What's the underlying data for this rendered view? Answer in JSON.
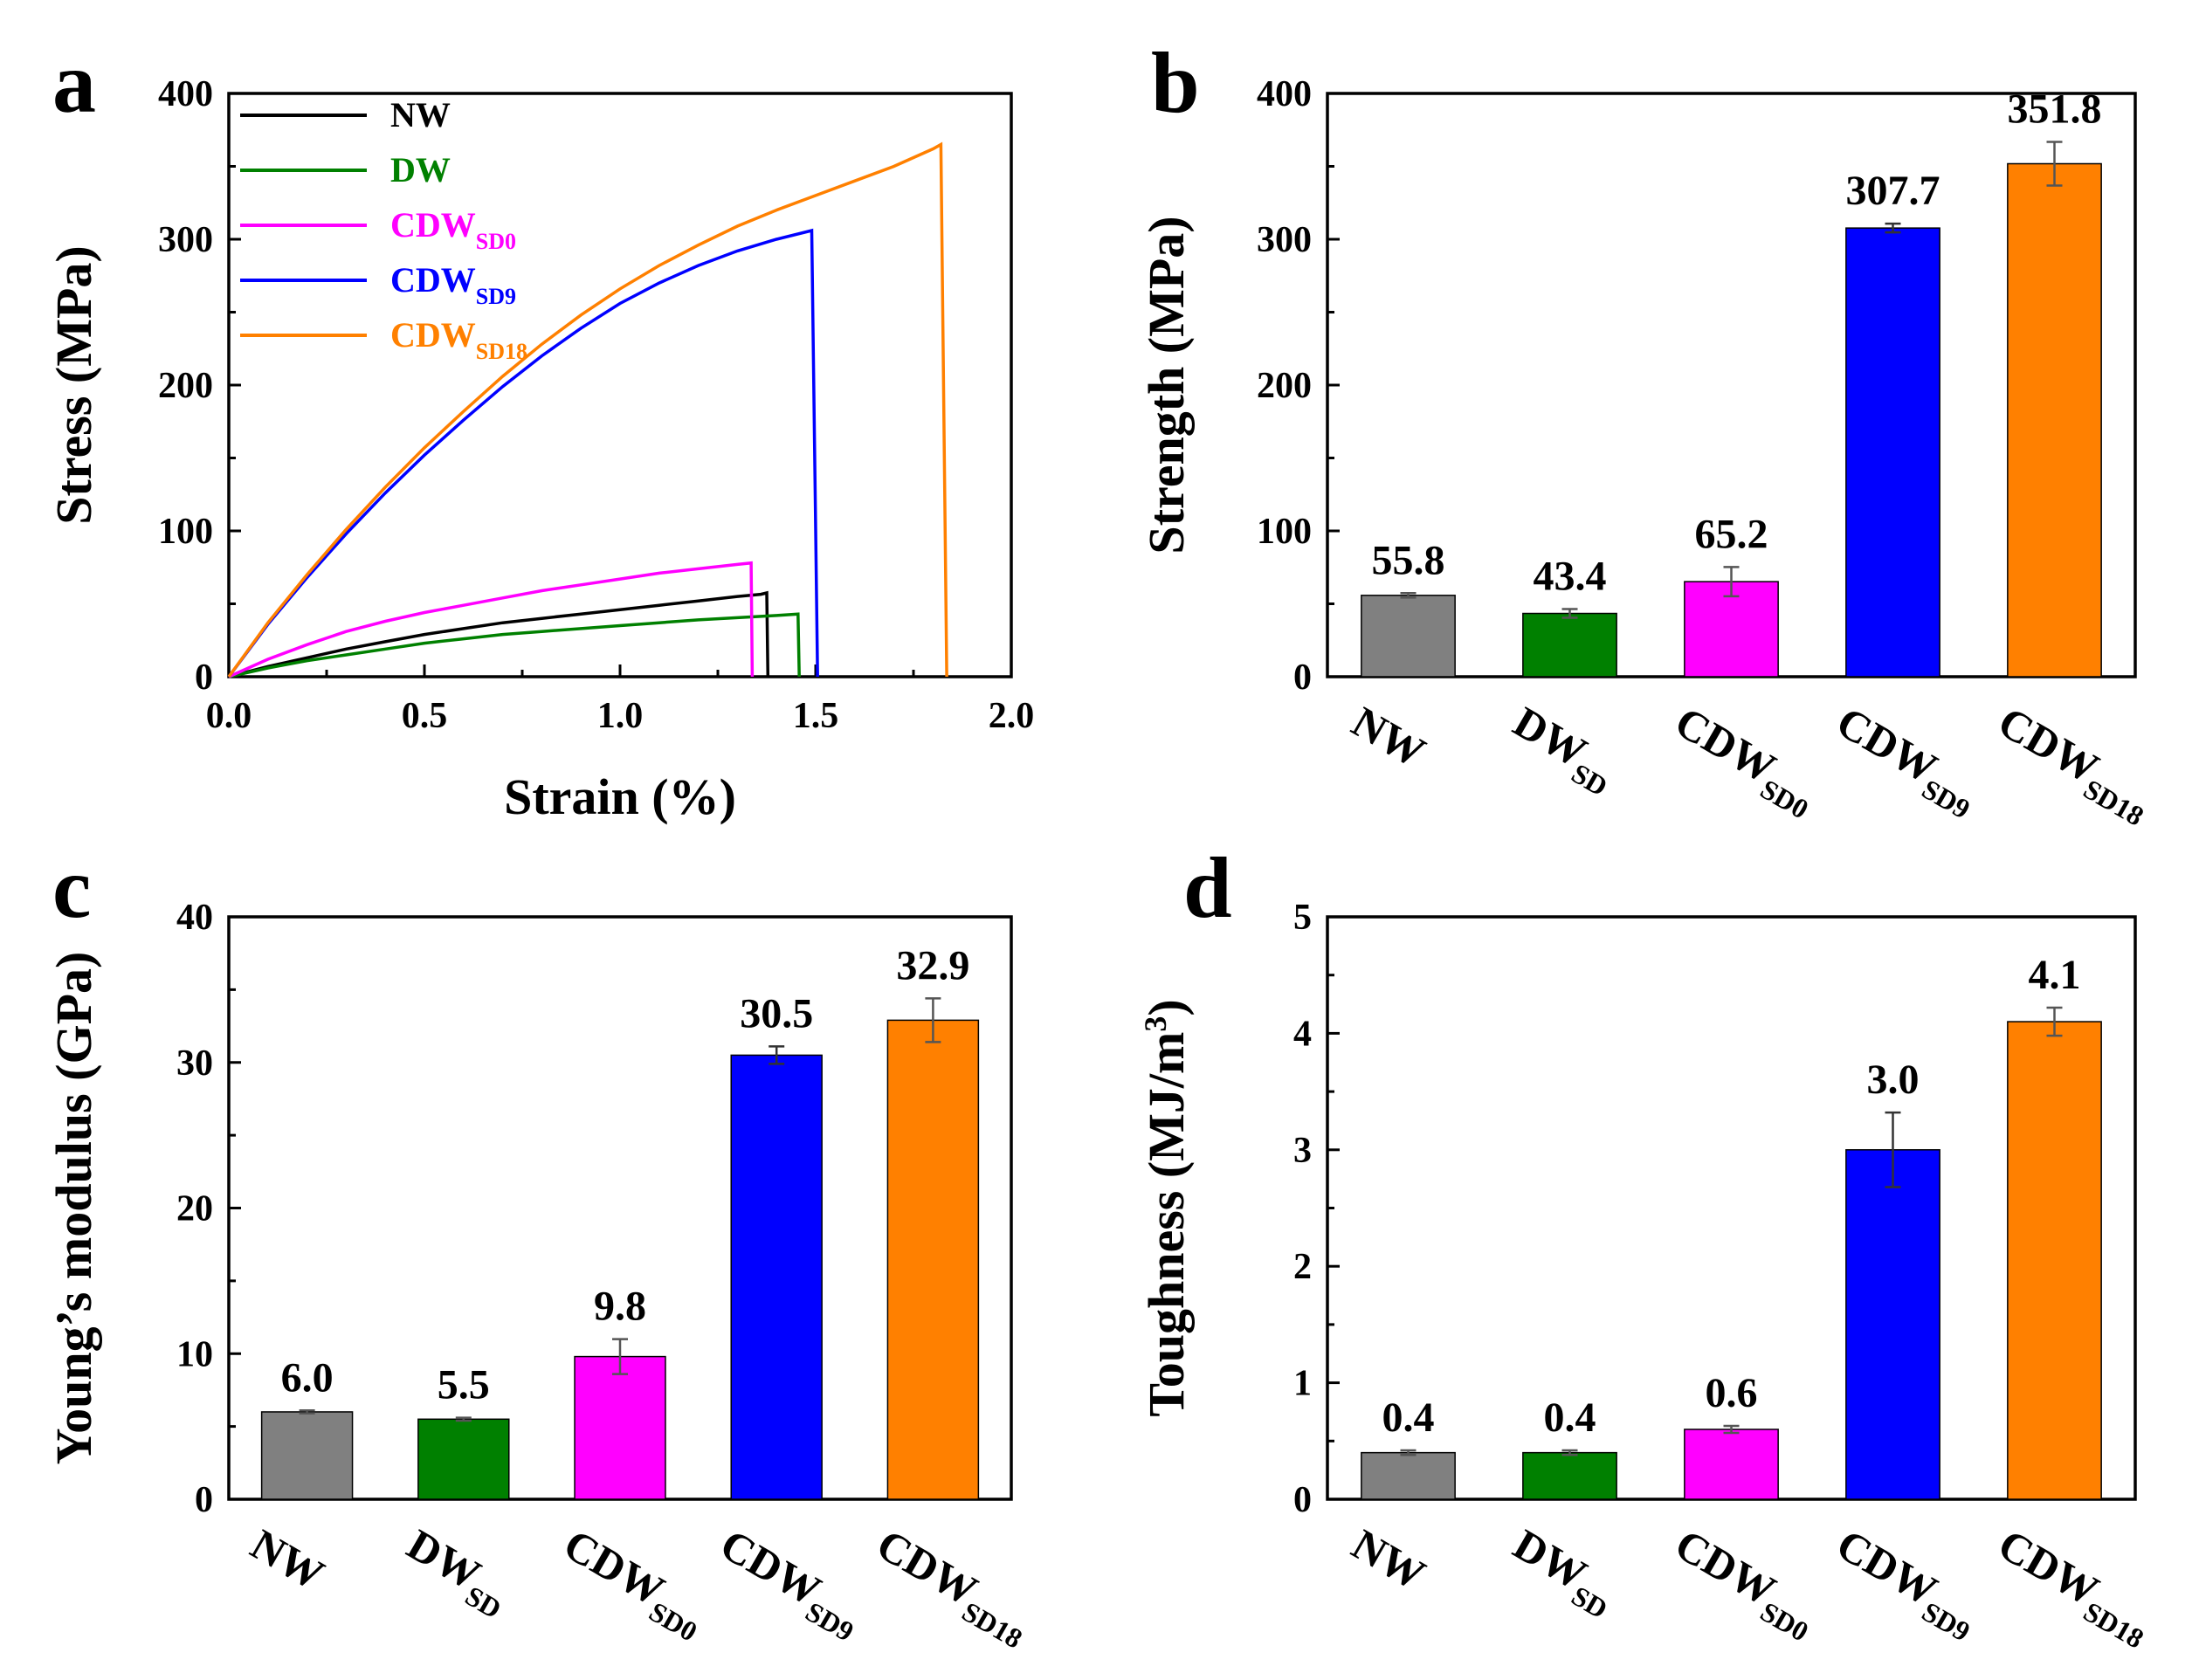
{
  "chart_data": [
    {
      "panel": "a",
      "type": "line",
      "xlabel": "Strain (%)",
      "ylabel": "Stress (MPa)",
      "xlim": [
        0,
        2.0
      ],
      "ylim": [
        0,
        400
      ],
      "xticks": [
        "0.0",
        "0.5",
        "1.0",
        "1.5",
        "2.0"
      ],
      "yticks": [
        "0",
        "100",
        "200",
        "300",
        "400"
      ],
      "legend": {
        "placement": "top-left"
      },
      "series": [
        {
          "name": "NW",
          "base": "NW",
          "sub": "",
          "color": "#000000",
          "points": [
            [
              0,
              0
            ],
            [
              0.1,
              7
            ],
            [
              0.2,
              13
            ],
            [
              0.3,
              19
            ],
            [
              0.4,
              24
            ],
            [
              0.5,
              29
            ],
            [
              0.6,
              33
            ],
            [
              0.7,
              37
            ],
            [
              0.8,
              40
            ],
            [
              0.9,
              43
            ],
            [
              1.0,
              46
            ],
            [
              1.1,
              49
            ],
            [
              1.2,
              52
            ],
            [
              1.3,
              55
            ],
            [
              1.36,
              56.5
            ],
            [
              1.375,
              57.5
            ],
            [
              1.378,
              0
            ]
          ]
        },
        {
          "name": "DW",
          "base": "DW",
          "sub": "",
          "color": "#008000",
          "points": [
            [
              0,
              0
            ],
            [
              0.1,
              6
            ],
            [
              0.2,
              11
            ],
            [
              0.3,
              15
            ],
            [
              0.4,
              19
            ],
            [
              0.5,
              23
            ],
            [
              0.6,
              26
            ],
            [
              0.7,
              29
            ],
            [
              0.8,
              31
            ],
            [
              0.9,
              33
            ],
            [
              1.0,
              35
            ],
            [
              1.1,
              37
            ],
            [
              1.2,
              39
            ],
            [
              1.3,
              40.5
            ],
            [
              1.4,
              42
            ],
            [
              1.455,
              43
            ],
            [
              1.458,
              0
            ]
          ]
        },
        {
          "name": "CDWSD0",
          "base": "CDW",
          "sub": "SD0",
          "color": "#ff00ff",
          "points": [
            [
              0,
              0
            ],
            [
              0.1,
              12
            ],
            [
              0.2,
              22
            ],
            [
              0.3,
              31
            ],
            [
              0.4,
              38
            ],
            [
              0.5,
              44
            ],
            [
              0.6,
              49
            ],
            [
              0.7,
              54
            ],
            [
              0.8,
              59
            ],
            [
              0.9,
              63
            ],
            [
              1.0,
              67
            ],
            [
              1.1,
              71
            ],
            [
              1.2,
              74
            ],
            [
              1.3,
              77
            ],
            [
              1.335,
              78
            ],
            [
              1.338,
              0
            ]
          ]
        },
        {
          "name": "CDWSD9",
          "base": "CDW",
          "sub": "SD9",
          "color": "#0000ff",
          "points": [
            [
              0,
              0
            ],
            [
              0.1,
              36
            ],
            [
              0.2,
              68
            ],
            [
              0.3,
              98
            ],
            [
              0.4,
              126
            ],
            [
              0.5,
              152
            ],
            [
              0.6,
              176
            ],
            [
              0.7,
              199
            ],
            [
              0.8,
              220
            ],
            [
              0.9,
              239
            ],
            [
              1.0,
              256
            ],
            [
              1.1,
              270
            ],
            [
              1.2,
              282
            ],
            [
              1.3,
              292
            ],
            [
              1.4,
              300
            ],
            [
              1.49,
              306
            ],
            [
              1.505,
              0
            ]
          ]
        },
        {
          "name": "CDWSD18",
          "base": "CDW",
          "sub": "SD18",
          "color": "#ff8000",
          "points": [
            [
              0,
              0
            ],
            [
              0.1,
              37
            ],
            [
              0.2,
              70
            ],
            [
              0.3,
              101
            ],
            [
              0.4,
              130
            ],
            [
              0.5,
              157
            ],
            [
              0.6,
              182
            ],
            [
              0.7,
              206
            ],
            [
              0.8,
              228
            ],
            [
              0.9,
              248
            ],
            [
              1.0,
              266
            ],
            [
              1.1,
              282
            ],
            [
              1.2,
              296
            ],
            [
              1.3,
              309
            ],
            [
              1.4,
              320
            ],
            [
              1.5,
              330
            ],
            [
              1.6,
              340
            ],
            [
              1.7,
              350
            ],
            [
              1.8,
              362
            ],
            [
              1.82,
              365
            ],
            [
              1.835,
              0
            ]
          ]
        }
      ]
    },
    {
      "panel": "b",
      "type": "bar",
      "ylabel": "Strength (MPa)",
      "ylim": [
        0,
        400
      ],
      "yticks": [
        "0",
        "100",
        "200",
        "300",
        "400"
      ],
      "categories": [
        {
          "base": "NW",
          "sub": ""
        },
        {
          "base": "DW",
          "sub": "SD"
        },
        {
          "base": "CDW",
          "sub": "SD0"
        },
        {
          "base": "CDW",
          "sub": "SD9"
        },
        {
          "base": "CDW",
          "sub": "SD18"
        }
      ],
      "values": [
        55.8,
        43.4,
        65.2,
        307.7,
        351.8
      ],
      "errors": [
        1.5,
        3,
        10,
        3,
        15
      ],
      "labels": [
        "55.8",
        "43.4",
        "65.2",
        "307.7",
        "351.8"
      ],
      "colors": [
        "#808080",
        "#008000",
        "#ff00ff",
        "#0000ff",
        "#ff8000"
      ]
    },
    {
      "panel": "c",
      "type": "bar",
      "ylabel": "Young’s modulus (GPa)",
      "ylim": [
        0,
        40
      ],
      "yticks": [
        "0",
        "10",
        "20",
        "30",
        "40"
      ],
      "categories": [
        {
          "base": "NW",
          "sub": ""
        },
        {
          "base": "DW",
          "sub": "SD"
        },
        {
          "base": "CDW",
          "sub": "SD0"
        },
        {
          "base": "CDW",
          "sub": "SD9"
        },
        {
          "base": "CDW",
          "sub": "SD18"
        }
      ],
      "values": [
        6.0,
        5.5,
        9.8,
        30.5,
        32.9
      ],
      "errors": [
        0.1,
        0.1,
        1.2,
        0.6,
        1.5
      ],
      "labels": [
        "6.0",
        "5.5",
        "9.8",
        "30.5",
        "32.9"
      ],
      "colors": [
        "#808080",
        "#008000",
        "#ff00ff",
        "#0000ff",
        "#ff8000"
      ]
    },
    {
      "panel": "d",
      "type": "bar",
      "ylabel": "Toughness (MJ/m",
      "ylabel_sup": "3",
      "ylabel_end": ")",
      "ylim": [
        0,
        5
      ],
      "yticks": [
        "0",
        "1",
        "2",
        "3",
        "4",
        "5"
      ],
      "categories": [
        {
          "base": "NW",
          "sub": ""
        },
        {
          "base": "DW",
          "sub": "SD"
        },
        {
          "base": "CDW",
          "sub": "SD0"
        },
        {
          "base": "CDW",
          "sub": "SD9"
        },
        {
          "base": "CDW",
          "sub": "SD18"
        }
      ],
      "values": [
        0.4,
        0.4,
        0.6,
        3.0,
        4.1
      ],
      "errors": [
        0.02,
        0.02,
        0.03,
        0.32,
        0.12
      ],
      "labels": [
        "0.4",
        "0.4",
        "0.6",
        "3.0",
        "4.1"
      ],
      "colors": [
        "#808080",
        "#008000",
        "#ff00ff",
        "#0000ff",
        "#ff8000"
      ]
    }
  ]
}
